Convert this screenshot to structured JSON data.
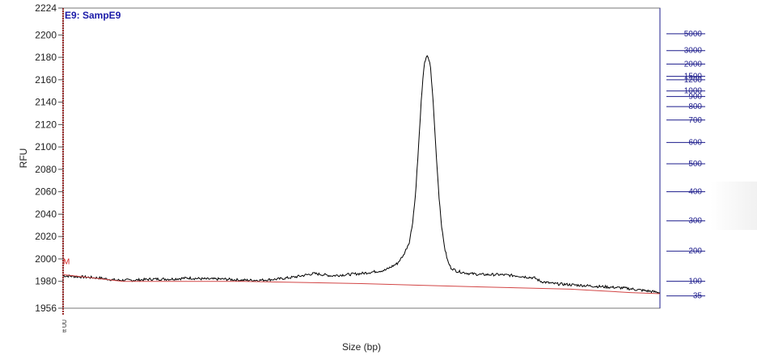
{
  "chart_data": {
    "type": "line",
    "sample_label": "E9: SampE9",
    "xlabel": "Size (bp)",
    "ylabel": "RFU",
    "ylim": [
      1956,
      2224
    ],
    "y_ticks": [
      1956,
      1980,
      2000,
      2020,
      2040,
      2060,
      2080,
      2100,
      2120,
      2140,
      2160,
      2180,
      2200,
      2224
    ],
    "x_range": [
      0,
      1
    ],
    "series": [
      {
        "role": "trace",
        "color": "#000000",
        "x": [
          0.0,
          0.03,
          0.06,
          0.09,
          0.12,
          0.15,
          0.18,
          0.21,
          0.24,
          0.27,
          0.3,
          0.33,
          0.36,
          0.39,
          0.42,
          0.45,
          0.5,
          0.54,
          0.56,
          0.57,
          0.58,
          0.585,
          0.59,
          0.595,
          0.6,
          0.605,
          0.61,
          0.615,
          0.62,
          0.625,
          0.63,
          0.635,
          0.64,
          0.645,
          0.65,
          0.66,
          0.67,
          0.68,
          0.7,
          0.73,
          0.76,
          0.79,
          0.8,
          0.82,
          0.85,
          0.88,
          0.91,
          0.94,
          0.97,
          1.0
        ],
        "y": [
          1985,
          1984,
          1983,
          1981,
          1981,
          1982,
          1982,
          1983,
          1982,
          1982,
          1981,
          1981,
          1982,
          1984,
          1987,
          1985,
          1987,
          1990,
          1996,
          2003,
          2015,
          2030,
          2055,
          2095,
          2140,
          2175,
          2181,
          2175,
          2140,
          2095,
          2055,
          2025,
          2008,
          1997,
          1992,
          1989,
          1988,
          1987,
          1986,
          1986,
          1985,
          1983,
          1980,
          1978,
          1977,
          1976,
          1975,
          1974,
          1972,
          1970
        ]
      },
      {
        "role": "baseline",
        "color": "#d24545",
        "x": [
          0.0,
          0.1,
          0.3,
          0.5,
          0.7,
          0.85,
          0.95,
          1.0
        ],
        "y": [
          1986,
          1980,
          1980,
          1978,
          1975,
          1973,
          1970,
          1969
        ]
      }
    ],
    "ladder": {
      "color": "#1c1c8c",
      "sizes": [
        35,
        100,
        200,
        300,
        400,
        500,
        600,
        700,
        800,
        900,
        1000,
        1200,
        1500,
        2000,
        3000,
        5000
      ],
      "axis_y_values": [
        1967,
        1980,
        2007,
        2034,
        2060,
        2085,
        2104,
        2124,
        2136,
        2145,
        2150,
        2160,
        2163,
        2174,
        2186,
        2201
      ]
    },
    "markers": {
      "left_marker_label": "M",
      "left_marker_y": 1998,
      "bottom_left_label": "tt UU"
    },
    "grid": false,
    "legend": "none"
  }
}
